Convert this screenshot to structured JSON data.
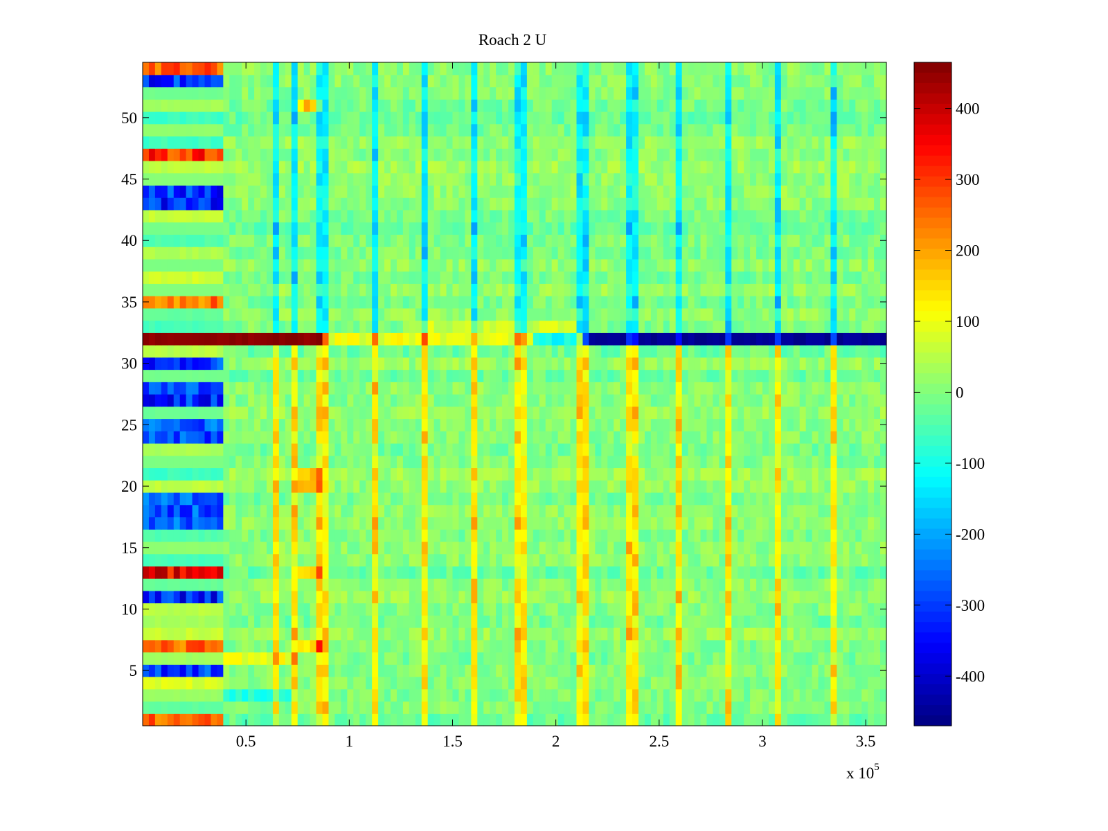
{
  "chart_data": {
    "type": "heatmap",
    "title": "Roach 2 U",
    "xlabel": "",
    "ylabel": "",
    "x_multiplier_label": {
      "base": "x 10",
      "exponent": "5"
    },
    "xlim": [
      0,
      3.6
    ],
    "ylim": [
      0.5,
      54.5
    ],
    "x_ticks": [
      {
        "value": 0.5,
        "label": "0.5"
      },
      {
        "value": 1.0,
        "label": "1"
      },
      {
        "value": 1.5,
        "label": "1.5"
      },
      {
        "value": 2.0,
        "label": "2"
      },
      {
        "value": 2.5,
        "label": "2.5"
      },
      {
        "value": 3.0,
        "label": "3"
      },
      {
        "value": 3.5,
        "label": "3.5"
      }
    ],
    "y_ticks": [
      {
        "value": 5,
        "label": "5"
      },
      {
        "value": 10,
        "label": "10"
      },
      {
        "value": 15,
        "label": "15"
      },
      {
        "value": 20,
        "label": "20"
      },
      {
        "value": 25,
        "label": "25"
      },
      {
        "value": 30,
        "label": "30"
      },
      {
        "value": 35,
        "label": "35"
      },
      {
        "value": 40,
        "label": "40"
      },
      {
        "value": 45,
        "label": "45"
      },
      {
        "value": 50,
        "label": "50"
      }
    ],
    "n_rows": 54,
    "n_cols": 120,
    "colormap": "jet",
    "color_range": [
      -470,
      465
    ],
    "colorbar": {
      "placement": "right",
      "ticks": [
        {
          "value": 400,
          "label": "400"
        },
        {
          "value": 300,
          "label": "300"
        },
        {
          "value": 200,
          "label": "200"
        },
        {
          "value": 100,
          "label": "100"
        },
        {
          "value": 0,
          "label": "0"
        },
        {
          "value": -100,
          "label": "-100"
        },
        {
          "value": -200,
          "label": "-200"
        },
        {
          "value": -300,
          "label": "-300"
        },
        {
          "value": -400,
          "label": "-400"
        }
      ]
    },
    "highlights": {
      "row_32_high_until_x": 0.86,
      "row_32_low_from_x": 2.12,
      "periodic_spike_x": [
        0.65,
        0.74,
        0.87,
        1.13,
        1.36,
        1.6,
        1.83,
        2.13,
        2.37,
        2.6,
        2.83,
        3.07,
        3.35
      ]
    }
  }
}
